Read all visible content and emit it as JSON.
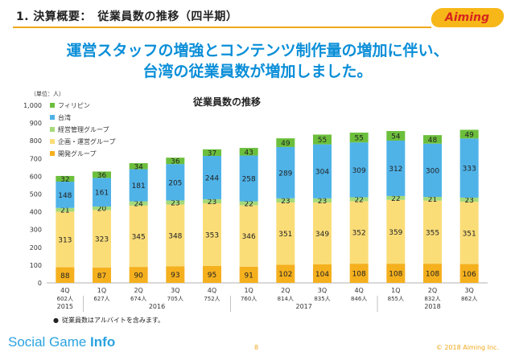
{
  "header": {
    "title": "1. 決算概要：　従業員数の推移（四半期）",
    "logo": "Aiming"
  },
  "headline": {
    "line1": "運営スタッフの増強とコンテンツ制作量の増加に伴い、",
    "line2": "台湾の従業員数が増加しました。"
  },
  "unit_label": "（単位：人）",
  "footnote": "従業員数はアルバイトを含みます。",
  "footer": {
    "watermark_light": "Social Game ",
    "watermark_bold": "Info",
    "page": "8",
    "copyright": "© 2018 Aiming Inc."
  },
  "colors": {
    "accent": "#f0a81c",
    "headline": "#0a8ed8",
    "philippines": "#6cbf3c",
    "taiwan": "#4fb3e8",
    "management": "#a5d97a",
    "planning": "#fbdd78",
    "development": "#f5b01e"
  },
  "chart_data": {
    "type": "bar",
    "stacked": true,
    "title": "従業員数の推移",
    "ylabel": "",
    "ylim": [
      0,
      1000
    ],
    "yticks": [
      "0",
      "100",
      "200",
      "300",
      "400",
      "500",
      "600",
      "700",
      "800",
      "900",
      "1,000"
    ],
    "categories": [
      "4Q",
      "1Q",
      "2Q",
      "3Q",
      "4Q",
      "1Q",
      "2Q",
      "3Q",
      "4Q",
      "1Q",
      "2Q",
      "3Q"
    ],
    "totals_text": [
      "602人",
      "627人",
      "674人",
      "705人",
      "752人",
      "760人",
      "814人",
      "835人",
      "846人",
      "855人",
      "832人",
      "862人"
    ],
    "years": [
      {
        "label": "2015",
        "from": 0,
        "to": 0
      },
      {
        "label": "2016",
        "from": 1,
        "to": 4
      },
      {
        "label": "2017",
        "from": 5,
        "to": 8
      },
      {
        "label": "2018",
        "from": 9,
        "to": 11
      }
    ],
    "series": [
      {
        "name": "開発グループ",
        "color": "#f5b01e",
        "values": [
          88,
          87,
          90,
          93,
          95,
          91,
          102,
          104,
          108,
          108,
          108,
          106
        ]
      },
      {
        "name": "企画・運営グループ",
        "color": "#fbdd78",
        "values": [
          313,
          323,
          345,
          348,
          353,
          346,
          351,
          349,
          352,
          359,
          355,
          351
        ]
      },
      {
        "name": "経営管理グループ",
        "color": "#a5d97a",
        "values": [
          21,
          20,
          24,
          23,
          23,
          22,
          23,
          23,
          22,
          22,
          21,
          23
        ]
      },
      {
        "name": "台湾",
        "color": "#4fb3e8",
        "values": [
          148,
          161,
          181,
          205,
          244,
          258,
          289,
          304,
          309,
          312,
          300,
          333
        ]
      },
      {
        "name": "フィリピン",
        "color": "#6cbf3c",
        "values": [
          32,
          36,
          34,
          36,
          37,
          43,
          49,
          55,
          55,
          54,
          48,
          49
        ]
      }
    ],
    "legend_position": "top-left",
    "grid": false
  }
}
